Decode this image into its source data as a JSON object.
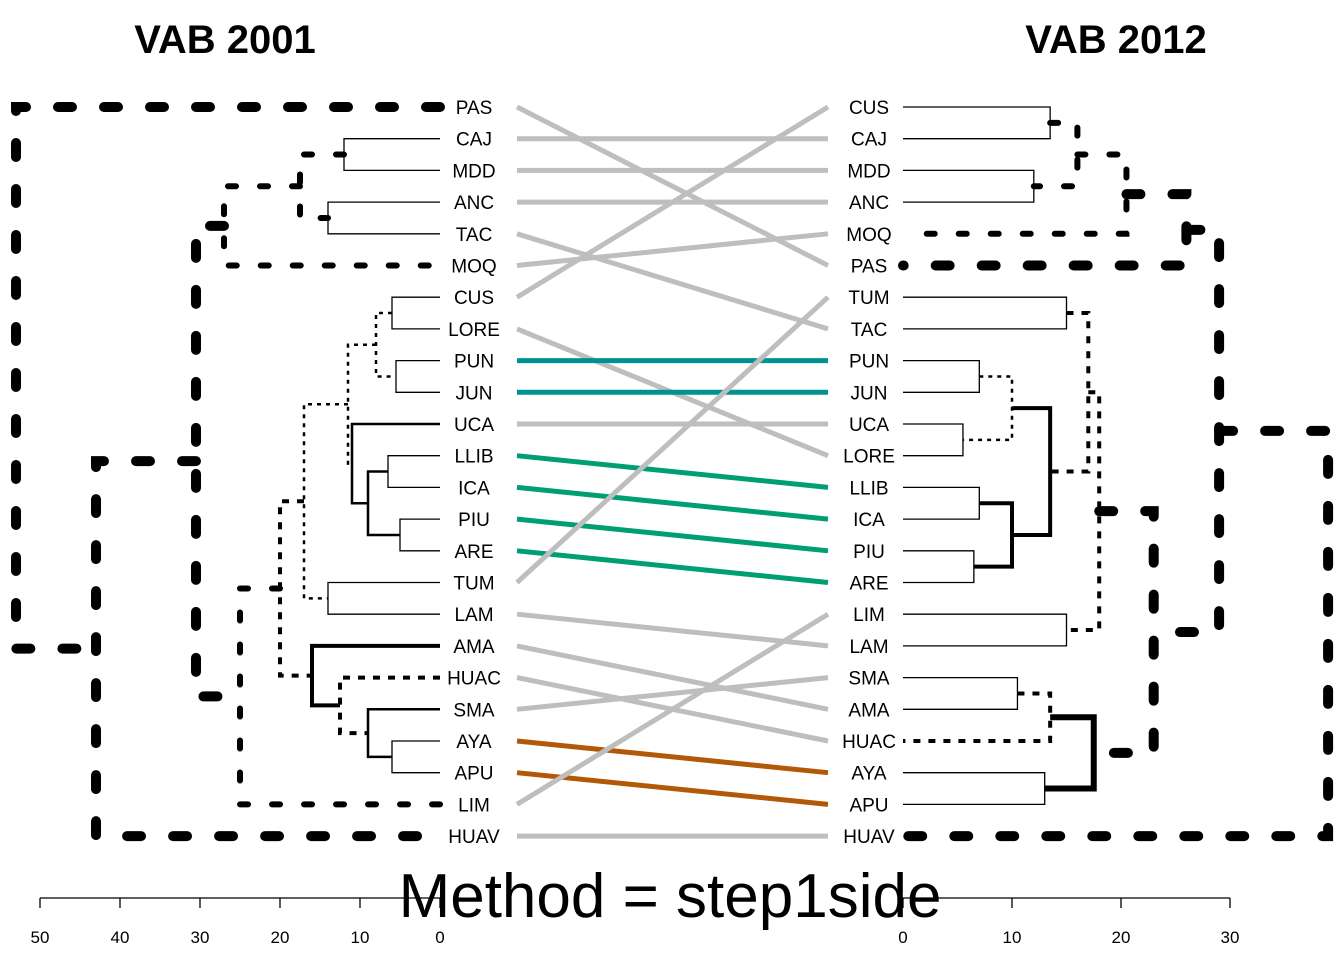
{
  "chart_data": {
    "type": "tanglegram",
    "caption": "Method = step1side",
    "left": {
      "title": "VAB 2001",
      "axis_ticks": [
        50,
        40,
        30,
        20,
        10,
        0
      ],
      "axis_max": 50,
      "leaves": [
        "PAS",
        "CAJ",
        "MDD",
        "ANC",
        "TAC",
        "MOQ",
        "CUS",
        "LORE",
        "PUN",
        "JUN",
        "UCA",
        "LLIB",
        "ICA",
        "PIU",
        "ARE",
        "TUM",
        "LAM",
        "AMA",
        "HUAC",
        "SMA",
        "AYA",
        "APU",
        "LIM",
        "HUAV"
      ],
      "merges": [
        {
          "a": "CAJ",
          "b": "MDD",
          "height": 12,
          "style": "thin"
        },
        {
          "a": "ANC",
          "b": "TAC",
          "height": 14,
          "style": "thin"
        },
        {
          "a": "CUS",
          "b": "LORE",
          "height": 6,
          "style": "thin"
        },
        {
          "a": "PUN",
          "b": "JUN",
          "height": 5.5,
          "style": "thin"
        },
        {
          "a": "LLIB",
          "b": "ICA",
          "height": 6.5,
          "style": "thin"
        },
        {
          "a": "PIU",
          "b": "ARE",
          "height": 5,
          "style": "thin"
        },
        {
          "a": "TUM",
          "b": "LAM",
          "height": 14,
          "style": "thin"
        },
        {
          "a": "AYA",
          "b": "APU",
          "height": 6,
          "style": "thin"
        },
        {
          "a": "m:CUS+LORE",
          "b": "m:PUN+JUN",
          "height": 8,
          "style": "dot"
        },
        {
          "a": "m:LLIB+ICA",
          "b": "m:PIU+ARE",
          "height": 9,
          "style": "solid2"
        },
        {
          "a": "m:LLIB+ICA+PIU+ARE",
          "b": "UCA",
          "height": 11,
          "style": "solid2"
        },
        {
          "a": "m:CUS+LORE+PUN+JUN",
          "b": "m:UCA+LLIB+ICA+PIU+ARE",
          "height": 11.5,
          "style": "dot"
        },
        {
          "a": "m:CUS..ARE",
          "b": "m:TUM+LAM",
          "height": 17,
          "style": "dot"
        },
        {
          "a": "SMA",
          "b": "m:AYA+APU",
          "height": 9,
          "style": "solid2"
        },
        {
          "a": "HUAC",
          "b": "m:SMA+AYA+APU",
          "height": 12.5,
          "style": "dot2"
        },
        {
          "a": "AMA",
          "b": "m:HUAC+SMA+AYA+APU",
          "height": 16,
          "style": "solid3"
        },
        {
          "a": "m:CUS..LAM",
          "b": "m:AMA..APU",
          "height": 20,
          "style": "dot2"
        },
        {
          "a": "m:CUS..APU",
          "b": "LIM",
          "height": 25,
          "style": "dash3"
        },
        {
          "a": "m:CAJ+MDD",
          "b": "m:ANC+TAC",
          "height": 17.5,
          "style": "dash3"
        },
        {
          "a": "m:CAJ..TAC",
          "b": "MOQ",
          "height": 27,
          "style": "dash3"
        },
        {
          "a": "m:CAJ..MOQ",
          "b": "m:CUS..LIM",
          "height": 30.5,
          "style": "dash5"
        },
        {
          "a": "m:CAJ..LIM",
          "b": "HUAV",
          "height": 43,
          "style": "dash5"
        },
        {
          "a": "PAS",
          "b": "m:CAJ..HUAV",
          "height": 53,
          "style": "dash5"
        }
      ]
    },
    "right": {
      "title": "VAB 2012",
      "axis_ticks": [
        0,
        10,
        20,
        30
      ],
      "axis_max": 30,
      "leaves": [
        "CUS",
        "CAJ",
        "MDD",
        "ANC",
        "MOQ",
        "PAS",
        "TUM",
        "TAC",
        "PUN",
        "JUN",
        "UCA",
        "LORE",
        "LLIB",
        "ICA",
        "PIU",
        "ARE",
        "LIM",
        "LAM",
        "SMA",
        "AMA",
        "HUAC",
        "AYA",
        "APU",
        "HUAV"
      ],
      "merges": [
        {
          "a": "CUS",
          "b": "CAJ",
          "height": 13.5,
          "style": "thin"
        },
        {
          "a": "MDD",
          "b": "ANC",
          "height": 12,
          "style": "thin"
        },
        {
          "a": "TUM",
          "b": "TAC",
          "height": 15,
          "style": "thin"
        },
        {
          "a": "PUN",
          "b": "JUN",
          "height": 7,
          "style": "thin"
        },
        {
          "a": "UCA",
          "b": "LORE",
          "height": 5.5,
          "style": "thin"
        },
        {
          "a": "LLIB",
          "b": "ICA",
          "height": 7,
          "style": "thin"
        },
        {
          "a": "PIU",
          "b": "ARE",
          "height": 6.5,
          "style": "thin"
        },
        {
          "a": "LIM",
          "b": "LAM",
          "height": 15,
          "style": "thin"
        },
        {
          "a": "SMA",
          "b": "AMA",
          "height": 10.5,
          "style": "thin"
        },
        {
          "a": "AYA",
          "b": "APU",
          "height": 13,
          "style": "thin"
        },
        {
          "a": "m:PUN+JUN",
          "b": "m:UCA+LORE",
          "height": 10,
          "style": "dot"
        },
        {
          "a": "m:LLIB+ICA",
          "b": "m:PIU+ARE",
          "height": 10,
          "style": "solid3"
        },
        {
          "a": "m:PUN..LORE",
          "b": "m:LLIB..ARE",
          "height": 13.5,
          "style": "solid3"
        },
        {
          "a": "m:TUM+TAC",
          "b": "m:PUN..ARE",
          "height": 17,
          "style": "dot2"
        },
        {
          "a": "m:TUM..ARE",
          "b": "m:LIM+LAM",
          "height": 18,
          "style": "dot2"
        },
        {
          "a": "m:SMA+AMA",
          "b": "HUAC",
          "height": 13.5,
          "style": "dot2"
        },
        {
          "a": "m:SMA..HUAC",
          "b": "m:AYA+APU",
          "height": 17.5,
          "style": "solid5"
        },
        {
          "a": "m:TUM..LAM",
          "b": "m:SMA..APU",
          "height": 23,
          "style": "dash5"
        },
        {
          "a": "m:CUS+CAJ",
          "b": "m:MDD+ANC",
          "height": 16,
          "style": "dash3"
        },
        {
          "a": "m:CUS..ANC",
          "b": "MOQ",
          "height": 20.5,
          "style": "dash3"
        },
        {
          "a": "m:CUS..MOQ",
          "b": "PAS",
          "height": 26,
          "style": "dash5"
        },
        {
          "a": "m:CUS..PAS",
          "b": "m:TUM..APU",
          "height": 29,
          "style": "dash5"
        },
        {
          "a": "m:CUS..APU",
          "b": "HUAV",
          "height": 39,
          "style": "dash5"
        }
      ]
    },
    "connections": [
      {
        "left": "PAS",
        "right": "PAS",
        "color": "#bebebe"
      },
      {
        "left": "CAJ",
        "right": "CAJ",
        "color": "#bebebe"
      },
      {
        "left": "MDD",
        "right": "MDD",
        "color": "#bebebe"
      },
      {
        "left": "ANC",
        "right": "ANC",
        "color": "#bebebe"
      },
      {
        "left": "TAC",
        "right": "TAC",
        "color": "#bebebe"
      },
      {
        "left": "MOQ",
        "right": "MOQ",
        "color": "#bebebe"
      },
      {
        "left": "CUS",
        "right": "CUS",
        "color": "#bebebe"
      },
      {
        "left": "LORE",
        "right": "LORE",
        "color": "#bebebe"
      },
      {
        "left": "PUN",
        "right": "PUN",
        "color": "#009292"
      },
      {
        "left": "JUN",
        "right": "JUN",
        "color": "#009292"
      },
      {
        "left": "UCA",
        "right": "UCA",
        "color": "#bebebe"
      },
      {
        "left": "LLIB",
        "right": "LLIB",
        "color": "#009e73"
      },
      {
        "left": "ICA",
        "right": "ICA",
        "color": "#009e73"
      },
      {
        "left": "PIU",
        "right": "PIU",
        "color": "#009e73"
      },
      {
        "left": "ARE",
        "right": "ARE",
        "color": "#009e73"
      },
      {
        "left": "TUM",
        "right": "TUM",
        "color": "#bebebe"
      },
      {
        "left": "LAM",
        "right": "LAM",
        "color": "#bebebe"
      },
      {
        "left": "AMA",
        "right": "AMA",
        "color": "#bebebe"
      },
      {
        "left": "HUAC",
        "right": "HUAC",
        "color": "#bebebe"
      },
      {
        "left": "SMA",
        "right": "SMA",
        "color": "#bebebe"
      },
      {
        "left": "AYA",
        "right": "AYA",
        "color": "#b35806"
      },
      {
        "left": "APU",
        "right": "APU",
        "color": "#b35806"
      },
      {
        "left": "LIM",
        "right": "LIM",
        "color": "#bebebe"
      },
      {
        "left": "HUAV",
        "right": "HUAV",
        "color": "#bebebe"
      }
    ]
  }
}
